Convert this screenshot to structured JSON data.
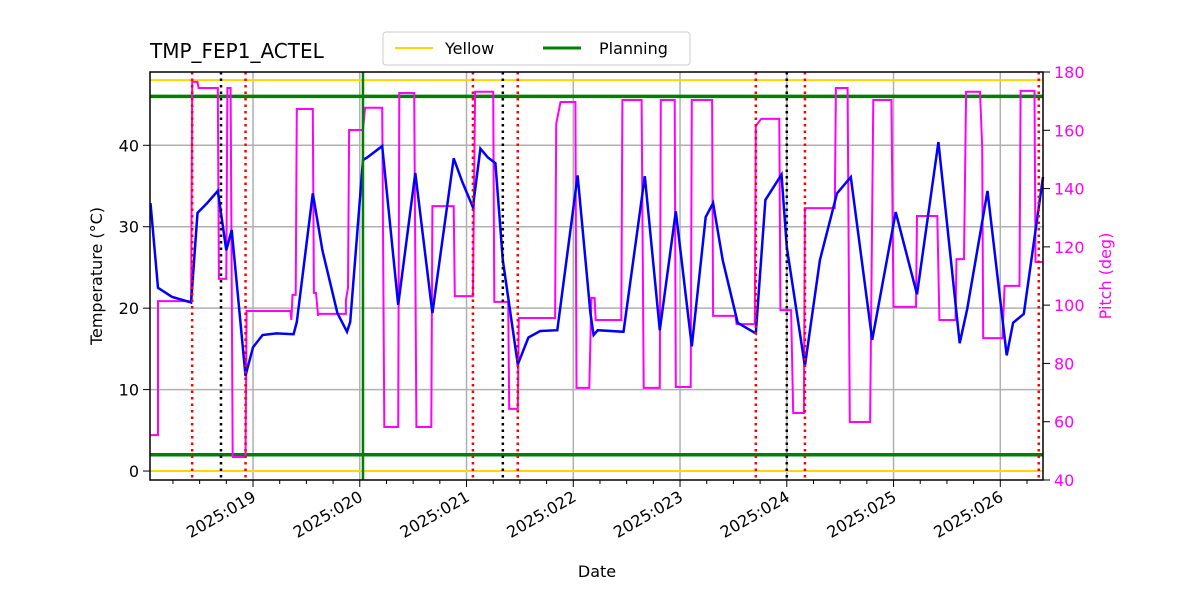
{
  "chart_data": {
    "type": "line",
    "title": "TMP_FEP1_ACTEL",
    "xlabel": "Date",
    "ylabel": "Temperature ($^\\circ$C)",
    "ylabel_display": "Temperature (°C)",
    "y2label": "Pitch (deg)",
    "xlim": [
      18.035,
      26.4
    ],
    "ylim": [
      -1.1,
      49
    ],
    "y2lim": [
      40,
      180
    ],
    "grid": true,
    "legend_placement": "top-center",
    "x_ticks": [
      19,
      20,
      21,
      22,
      23,
      24,
      25,
      26
    ],
    "x_tick_labels": [
      "2025:019",
      "2025:020",
      "2025:021",
      "2025:022",
      "2025:023",
      "2025:024",
      "2025:025",
      "2025:026"
    ],
    "y_ticks": [
      0,
      10,
      20,
      30,
      40
    ],
    "y2_ticks": [
      40,
      60,
      80,
      100,
      120,
      140,
      160,
      180
    ],
    "legend": [
      {
        "name": "Yellow",
        "color": "#ffd700"
      },
      {
        "name": "Planning",
        "color": "#008000"
      }
    ],
    "limits": {
      "yellow": [
        48,
        0
      ],
      "planning": [
        46,
        2
      ]
    },
    "vertical_lines": {
      "green": [
        20.03
      ],
      "red_dotted": [
        18.43,
        18.93,
        21.06,
        21.48,
        23.71,
        24.17,
        26.36
      ],
      "black_dotted": [
        18.7,
        21.34,
        24.0
      ]
    },
    "temperature": {
      "color": "#0000ff",
      "x": [
        18.04,
        18.11,
        18.24,
        18.42,
        18.48,
        18.57,
        18.67,
        18.75,
        18.8,
        18.93,
        19.0,
        19.09,
        19.22,
        19.38,
        19.41,
        19.56,
        19.65,
        19.79,
        19.88,
        19.91,
        20.03,
        20.07,
        20.21,
        20.36,
        20.52,
        20.68,
        20.88,
        20.96,
        21.06,
        21.13,
        21.2,
        21.27,
        21.34,
        21.48,
        21.58,
        21.69,
        21.85,
        22.04,
        22.16,
        22.19,
        22.23,
        22.47,
        22.67,
        22.81,
        22.96,
        23.11,
        23.24,
        23.31,
        23.4,
        23.54,
        23.71,
        23.8,
        23.95,
        24.0,
        24.17,
        24.31,
        24.47,
        24.6,
        24.8,
        25.02,
        25.22,
        25.42,
        25.62,
        25.69,
        25.88,
        26.06,
        26.12,
        26.22,
        26.4
      ],
      "y": [
        32.9,
        22.5,
        21.4,
        20.7,
        31.7,
        32.9,
        34.4,
        27.1,
        29.6,
        11.7,
        15.2,
        16.7,
        16.9,
        16.8,
        18.3,
        34.1,
        27.1,
        19.4,
        17.1,
        18.3,
        38.2,
        38.5,
        39.9,
        20.4,
        36.6,
        19.4,
        38.4,
        35.5,
        32.4,
        39.6,
        38.5,
        37.8,
        25.9,
        13.1,
        16.4,
        17.2,
        17.3,
        36.3,
        19.4,
        16.7,
        17.3,
        17.1,
        36.2,
        17.3,
        31.9,
        15.3,
        31.2,
        32.9,
        25.9,
        18.2,
        16.9,
        33.3,
        36.4,
        27.5,
        12.9,
        25.9,
        34.1,
        36.1,
        16.1,
        31.8,
        21.7,
        40.4,
        15.7,
        19.9,
        34.4,
        14.2,
        18.2,
        19.3,
        36.1
      ]
    },
    "pitch": {
      "color": "#ff00ff",
      "x": [
        18.04,
        18.11,
        18.11,
        18.42,
        18.43,
        18.48,
        18.49,
        18.67,
        18.68,
        18.75,
        18.76,
        18.79,
        18.81,
        18.93,
        18.94,
        19.35,
        19.36,
        19.37,
        19.4,
        19.41,
        19.56,
        19.57,
        19.59,
        19.61,
        19.61,
        19.87,
        19.87,
        19.89,
        19.9,
        20.03,
        20.05,
        20.21,
        20.23,
        20.36,
        20.37,
        20.51,
        20.53,
        20.67,
        20.68,
        20.88,
        20.89,
        21.06,
        21.08,
        21.25,
        21.26,
        21.39,
        21.4,
        21.48,
        21.49,
        21.83,
        21.84,
        21.88,
        22.02,
        22.03,
        22.15,
        22.17,
        22.2,
        22.21,
        22.45,
        22.46,
        22.64,
        22.66,
        22.81,
        22.82,
        22.95,
        22.96,
        23.1,
        23.11,
        23.3,
        23.31,
        23.52,
        23.53,
        23.7,
        23.71,
        23.76,
        23.93,
        23.94,
        24.04,
        24.06,
        24.16,
        24.17,
        24.45,
        24.46,
        24.57,
        24.59,
        24.78,
        24.81,
        24.98,
        25.0,
        25.21,
        25.22,
        25.41,
        25.43,
        25.58,
        25.59,
        25.66,
        25.68,
        25.81,
        25.83,
        25.84,
        26.02,
        26.04,
        26.18,
        26.19,
        26.32,
        26.33,
        26.4
      ],
      "y": [
        55.4,
        55.4,
        101.4,
        101.4,
        176.6,
        176.6,
        174.5,
        174.5,
        109,
        109,
        174.5,
        174.5,
        47.9,
        47.9,
        98,
        98,
        94.9,
        103.5,
        103.5,
        167.3,
        167.3,
        104.2,
        104.2,
        96.3,
        97,
        97,
        101.8,
        105.9,
        160.1,
        160.1,
        167.7,
        167.7,
        58.2,
        58.2,
        172.8,
        172.8,
        58.2,
        58.2,
        134,
        134,
        103.1,
        103.1,
        173.2,
        173.2,
        101.1,
        101.1,
        64.4,
        64.4,
        95.6,
        95.6,
        162.2,
        169.7,
        169.7,
        71.6,
        71.6,
        102.5,
        102.5,
        94.9,
        94.9,
        170.4,
        170.4,
        71.6,
        71.6,
        170.4,
        170.4,
        71.9,
        71.9,
        170.4,
        170.4,
        96.3,
        96.3,
        93.5,
        93.5,
        161.5,
        163.9,
        163.9,
        98.3,
        98.3,
        63,
        63,
        133.3,
        133.3,
        174.5,
        174.5,
        59.9,
        59.9,
        170.4,
        170.4,
        99.4,
        99.4,
        130.6,
        130.6,
        94.9,
        94.9,
        115.8,
        115.8,
        173.2,
        173.2,
        154.3,
        88.7,
        88.7,
        106.6,
        106.6,
        173.5,
        173.5,
        114.8,
        114.8
      ]
    }
  }
}
